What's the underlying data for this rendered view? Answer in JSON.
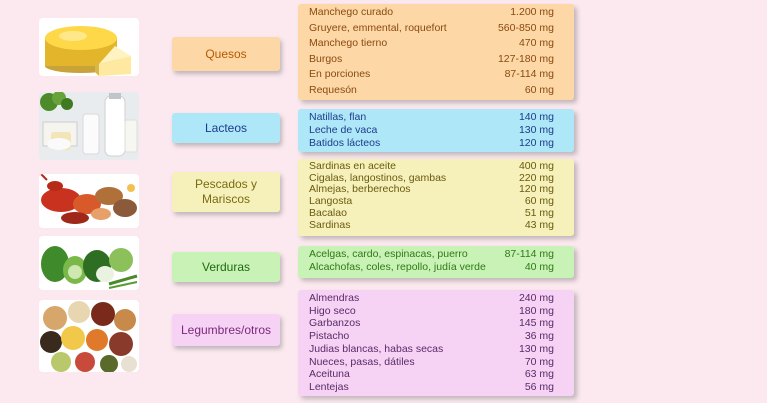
{
  "categories": [
    {
      "label": "Quesos",
      "bg": "#fdd8a6"
    },
    {
      "label": "Lacteos",
      "bg": "#aee7f7"
    },
    {
      "label_line1": "Pescados y",
      "label_line2": "Mariscos",
      "bg": "#f6f1bb"
    },
    {
      "label": "Verduras",
      "bg": "#c9f2b6"
    },
    {
      "label": "Legumbres/otros",
      "bg": "#f6d3f5"
    }
  ],
  "quesos": [
    {
      "name": "Manchego curado",
      "value": "1.200 mg"
    },
    {
      "name": "Gruyere, emmental, roquefort",
      "value": "560-850 mg"
    },
    {
      "name": "Manchego tierno",
      "value": "470 mg"
    },
    {
      "name": "Burgos",
      "value": "127-180 mg"
    },
    {
      "name": "En porciones",
      "value": "87-114 mg"
    },
    {
      "name": "Requesón",
      "value": "60 mg"
    }
  ],
  "lacteos": [
    {
      "name": "Natillas, flan",
      "value": "140 mg"
    },
    {
      "name": "Leche de vaca",
      "value": "130 mg"
    },
    {
      "name": "Batidos lácteos",
      "value": "120 mg"
    }
  ],
  "pescados": [
    {
      "name": "Sardinas en aceite",
      "value": "400 mg"
    },
    {
      "name": "Cigalas, langostinos, gambas",
      "value": "220 mg"
    },
    {
      "name": "Almejas, berberechos",
      "value": "120 mg"
    },
    {
      "name": "Langosta",
      "value": "60 mg"
    },
    {
      "name": "Bacalao",
      "value": "51 mg"
    },
    {
      "name": "Sardinas",
      "value": "43 mg"
    }
  ],
  "verduras": [
    {
      "name": "Acelgas, cardo, espinacas, puerro",
      "value": "87-114 mg"
    },
    {
      "name": "Alcachofas, coles, repollo, judía verde",
      "value": "40 mg"
    }
  ],
  "legumbres": [
    {
      "name": "Almendras",
      "value": "240 mg"
    },
    {
      "name": "Higo seco",
      "value": "180 mg"
    },
    {
      "name": "Garbanzos",
      "value": "145 mg"
    },
    {
      "name": "Pistacho",
      "value": "36 mg"
    },
    {
      "name": "Judias blancas, habas secas",
      "value": "130 mg"
    },
    {
      "name": "Nueces, pasas, dátiles",
      "value": "70 mg"
    },
    {
      "name": "Aceituna",
      "value": "63 mg"
    },
    {
      "name": "Lentejas",
      "value": "56 mg"
    }
  ],
  "images": [
    "cheese-image",
    "dairy-image",
    "seafood-image",
    "vegetables-image",
    "legumes-image"
  ]
}
